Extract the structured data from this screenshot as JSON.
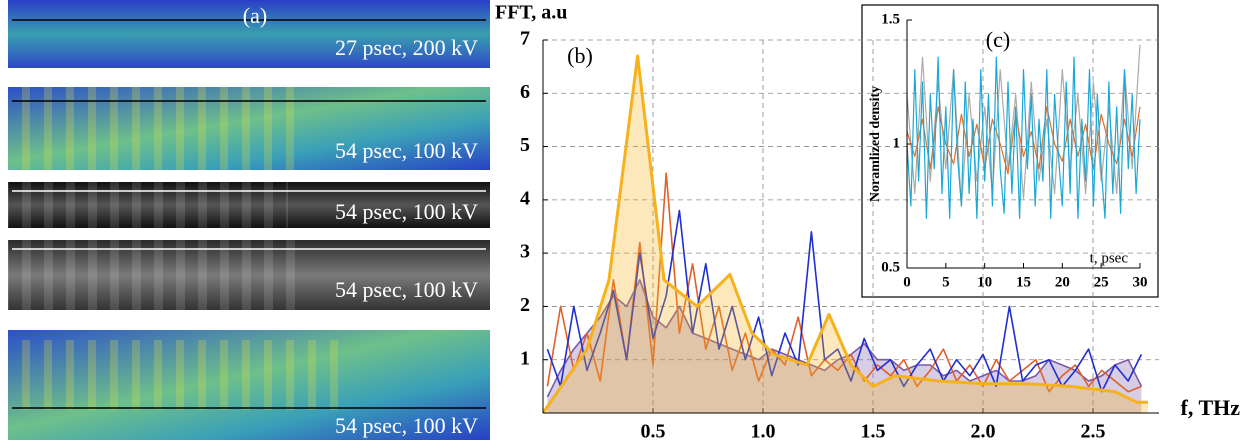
{
  "panel_a": {
    "label": "(a)",
    "captions": [
      "27 psec, 200 kV",
      "54 psec, 100 kV",
      "54 psec, 100 kV",
      "54 psec, 100 kV",
      "54 psec, 100 kV"
    ]
  },
  "chart_data": [
    {
      "type": "line",
      "panel_label": "(b)",
      "y_label": "FFT, a.u",
      "x_label": "f, THz",
      "xlim": [
        0,
        2.8
      ],
      "ylim": [
        0,
        7
      ],
      "xticks": [
        0.5,
        {
          "value": 1,
          "label": "1.0"
        },
        1.5,
        {
          "value": 2,
          "label": "2.0"
        },
        2.5
      ],
      "yticks": [
        1,
        2,
        3,
        4,
        5,
        6,
        7
      ],
      "grid": true,
      "series": [
        {
          "color": "#7b5aa6",
          "fill": true,
          "x": [
            0.02,
            0.08,
            0.14,
            0.2,
            0.26,
            0.32,
            0.38,
            0.44,
            0.5,
            0.56,
            0.62,
            0.68,
            0.74,
            0.8,
            0.86,
            0.92,
            0.98,
            1.04,
            1.1,
            1.16,
            1.22,
            1.28,
            1.34,
            1.4,
            1.46,
            1.52,
            1.58,
            1.64,
            1.7,
            1.76,
            1.82,
            1.88,
            1.94,
            2.0,
            2.06,
            2.12,
            2.18,
            2.24,
            2.3,
            2.36,
            2.42,
            2.48,
            2.54,
            2.6,
            2.66,
            2.72
          ],
          "values": [
            0.3,
            0.8,
            1.2,
            1.5,
            1.8,
            2.2,
            2.0,
            2.5,
            1.8,
            1.6,
            2.0,
            1.5,
            1.4,
            1.3,
            1.2,
            1.1,
            1.0,
            1.2,
            1.1,
            1.0,
            0.9,
            0.8,
            1.0,
            1.1,
            1.3,
            1.0,
            1.0,
            0.8,
            0.9,
            0.9,
            0.7,
            0.8,
            0.6,
            0.7,
            0.8,
            0.6,
            0.6,
            0.7,
            1.0,
            0.9,
            0.8,
            0.6,
            0.7,
            0.9,
            1.0,
            0.5
          ]
        },
        {
          "color": "#e0602a",
          "fill": false,
          "x": [
            0.02,
            0.08,
            0.14,
            0.2,
            0.26,
            0.32,
            0.38,
            0.44,
            0.5,
            0.56,
            0.62,
            0.68,
            0.74,
            0.8,
            0.86,
            0.92,
            0.98,
            1.04,
            1.1,
            1.16,
            1.22,
            1.28,
            1.34,
            1.4,
            1.46,
            1.52,
            1.58,
            1.64,
            1.7,
            1.76,
            1.82,
            1.88,
            1.94,
            2.0,
            2.06,
            2.12,
            2.18,
            2.24,
            2.3,
            2.36,
            2.42,
            2.48,
            2.54,
            2.6,
            2.66,
            2.72
          ],
          "values": [
            0.5,
            2.0,
            0.8,
            1.5,
            0.6,
            2.5,
            1.0,
            3.2,
            0.9,
            4.5,
            1.5,
            2.8,
            1.2,
            2.0,
            0.8,
            1.5,
            0.6,
            1.2,
            0.9,
            1.8,
            0.7,
            1.0,
            0.8,
            1.1,
            0.6,
            0.9,
            0.7,
            1.0,
            0.5,
            0.8,
            1.2,
            0.6,
            0.9,
            0.5,
            1.0,
            0.6,
            0.8,
            1.0,
            0.4,
            0.7,
            0.9,
            0.5,
            0.8,
            0.6,
            0.4,
            0.5
          ]
        },
        {
          "color": "#1f2fd0",
          "fill": false,
          "x": [
            0.02,
            0.08,
            0.14,
            0.2,
            0.26,
            0.32,
            0.38,
            0.44,
            0.5,
            0.56,
            0.62,
            0.68,
            0.74,
            0.8,
            0.86,
            0.92,
            0.98,
            1.04,
            1.1,
            1.16,
            1.22,
            1.28,
            1.34,
            1.4,
            1.46,
            1.52,
            1.58,
            1.64,
            1.7,
            1.76,
            1.82,
            1.88,
            1.94,
            2.0,
            2.06,
            2.12,
            2.18,
            2.24,
            2.3,
            2.36,
            2.42,
            2.48,
            2.54,
            2.6,
            2.66,
            2.72
          ],
          "values": [
            1.2,
            0.5,
            2.0,
            0.8,
            1.5,
            2.3,
            1.0,
            3.0,
            1.4,
            2.2,
            3.8,
            1.5,
            2.8,
            1.2,
            2.0,
            1.0,
            1.8,
            0.7,
            1.5,
            0.9,
            3.4,
            1.0,
            1.2,
            0.6,
            1.4,
            0.8,
            1.0,
            0.5,
            0.9,
            1.2,
            0.6,
            1.0,
            0.7,
            1.1,
            0.5,
            2.0,
            0.6,
            0.9,
            1.0,
            0.5,
            0.8,
            1.2,
            0.4,
            0.9,
            0.6,
            1.1
          ]
        },
        {
          "color": "#f5b21d",
          "fill": true,
          "x": [
            0,
            0.2,
            0.3,
            0.43,
            0.55,
            0.7,
            0.85,
            0.95,
            1.05,
            1.2,
            1.3,
            1.4,
            1.5,
            1.6,
            1.8,
            2.0,
            2.2,
            2.4,
            2.6,
            2.7,
            2.75
          ],
          "values": [
            0,
            1.2,
            2.5,
            6.7,
            2.5,
            2.0,
            2.6,
            1.5,
            1.1,
            0.9,
            1.85,
            0.9,
            0.5,
            0.7,
            0.6,
            0.55,
            0.55,
            0.5,
            0.4,
            0.2,
            0.2
          ]
        }
      ]
    },
    {
      "type": "line",
      "panel_label": "(c)",
      "y_label": "Noramlized density",
      "x_label": "t, psec",
      "xlim": [
        0,
        30
      ],
      "ylim": [
        0.5,
        1.5
      ],
      "xticks": [
        0,
        5,
        10,
        15,
        20,
        25,
        30
      ],
      "yticks": [
        0.5,
        1,
        1.5
      ],
      "grid": false,
      "series": [
        {
          "color": "#b0aaa4",
          "fill": false,
          "x": [
            0,
            1,
            2,
            3,
            4,
            5,
            6,
            7,
            8,
            9,
            10,
            11,
            12,
            13,
            14,
            15,
            16,
            17,
            18,
            19,
            20,
            21,
            22,
            23,
            24,
            25,
            26,
            27,
            28,
            29,
            30
          ],
          "values": [
            1.2,
            0.8,
            1.35,
            0.85,
            1.25,
            0.9,
            1.3,
            0.75,
            1.2,
            0.85,
            1.15,
            0.8,
            1.3,
            0.9,
            1.2,
            0.78,
            1.25,
            0.85,
            1.1,
            0.8,
            1.3,
            0.9,
            1.2,
            0.8,
            1.25,
            0.85,
            1.15,
            0.8,
            1.3,
            0.9,
            1.4
          ]
        },
        {
          "color": "#e0702a",
          "fill": false,
          "x": [
            0,
            1,
            2,
            3,
            4,
            5,
            6,
            7,
            8,
            9,
            10,
            11,
            12,
            13,
            14,
            15,
            16,
            17,
            18,
            19,
            20,
            21,
            22,
            23,
            24,
            25,
            26,
            27,
            28,
            29,
            30
          ],
          "values": [
            1.05,
            0.95,
            1.1,
            0.9,
            1.15,
            1.0,
            0.92,
            1.12,
            0.95,
            1.08,
            0.9,
            1.1,
            1.0,
            0.88,
            1.12,
            0.95,
            1.05,
            0.9,
            1.15,
            1.0,
            0.93,
            1.1,
            0.95,
            1.08,
            0.9,
            1.12,
            1.0,
            0.92,
            1.1,
            0.95,
            1.15
          ]
        },
        {
          "color": "#1aa8d8",
          "fill": false,
          "x": [
            0,
            0.5,
            1,
            1.5,
            2,
            2.5,
            3,
            3.5,
            4,
            4.5,
            5,
            5.5,
            6,
            6.5,
            7,
            7.5,
            8,
            8.5,
            9,
            9.5,
            10,
            10.5,
            11,
            11.5,
            12,
            12.5,
            13,
            13.5,
            14,
            14.5,
            15,
            15.5,
            16,
            16.5,
            17,
            17.5,
            18,
            18.5,
            19,
            19.5,
            20,
            20.5,
            21,
            21.5,
            22,
            22.5,
            23,
            23.5,
            24,
            24.5,
            25,
            25.5,
            26,
            26.5,
            27,
            27.5,
            28,
            28.5,
            29,
            29.5,
            30
          ],
          "values": [
            1.0,
            0.75,
            1.3,
            0.85,
            1.25,
            0.7,
            1.2,
            0.9,
            1.35,
            0.8,
            1.15,
            0.7,
            1.3,
            0.95,
            0.75,
            1.25,
            0.8,
            1.1,
            0.7,
            1.3,
            0.85,
            1.2,
            0.75,
            1.35,
            0.9,
            0.72,
            1.25,
            0.8,
            1.15,
            0.7,
            1.3,
            0.9,
            1.2,
            0.75,
            1.1,
            0.85,
            1.3,
            0.7,
            1.2,
            0.95,
            0.75,
            1.25,
            0.8,
            1.35,
            0.7,
            1.1,
            0.85,
            1.3,
            0.75,
            1.2,
            0.9,
            0.7,
            1.25,
            0.8,
            1.15,
            0.72,
            1.3,
            0.9,
            1.2,
            0.8,
            1.1
          ]
        }
      ]
    }
  ]
}
